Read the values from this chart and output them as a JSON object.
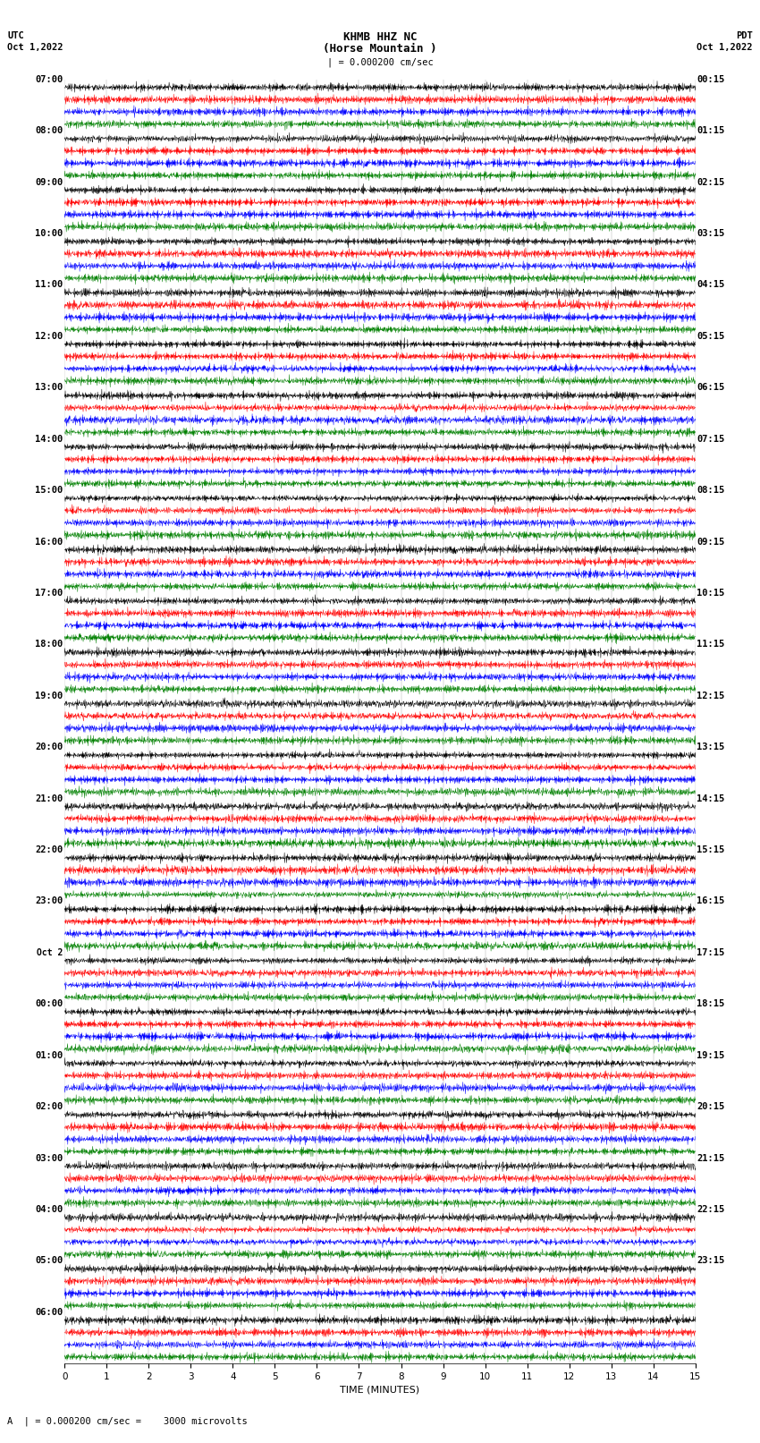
{
  "title_line1": "KHMB HHZ NC",
  "title_line2": "(Horse Mountain )",
  "scale_label": "| = 0.000200 cm/sec",
  "left_timezone": "UTC",
  "left_date": "Oct 1,2022",
  "right_timezone": "PDT",
  "right_date": "Oct 1,2022",
  "xlabel": "TIME (MINUTES)",
  "bottom_label": "A  | = 0.000200 cm/sec =    3000 microvolts",
  "left_times": [
    "07:00",
    "08:00",
    "09:00",
    "10:00",
    "11:00",
    "12:00",
    "13:00",
    "14:00",
    "15:00",
    "16:00",
    "17:00",
    "18:00",
    "19:00",
    "20:00",
    "21:00",
    "22:00",
    "23:00",
    "Oct 2",
    "00:00",
    "01:00",
    "02:00",
    "03:00",
    "04:00",
    "05:00",
    "06:00"
  ],
  "right_times": [
    "00:15",
    "01:15",
    "02:15",
    "03:15",
    "04:15",
    "05:15",
    "06:15",
    "07:15",
    "08:15",
    "09:15",
    "10:15",
    "11:15",
    "12:15",
    "13:15",
    "14:15",
    "15:15",
    "16:15",
    "17:15",
    "18:15",
    "19:15",
    "20:15",
    "21:15",
    "22:15",
    "23:15"
  ],
  "n_rows": 25,
  "traces_per_row": 4,
  "colors": [
    "black",
    "red",
    "blue",
    "green"
  ],
  "bg_color": "white",
  "fig_width": 8.5,
  "fig_height": 16.13,
  "dpi": 100,
  "xmin": 0,
  "xmax": 15,
  "xticks": [
    0,
    1,
    2,
    3,
    4,
    5,
    6,
    7,
    8,
    9,
    10,
    11,
    12,
    13,
    14,
    15
  ],
  "noise_seed": 42
}
